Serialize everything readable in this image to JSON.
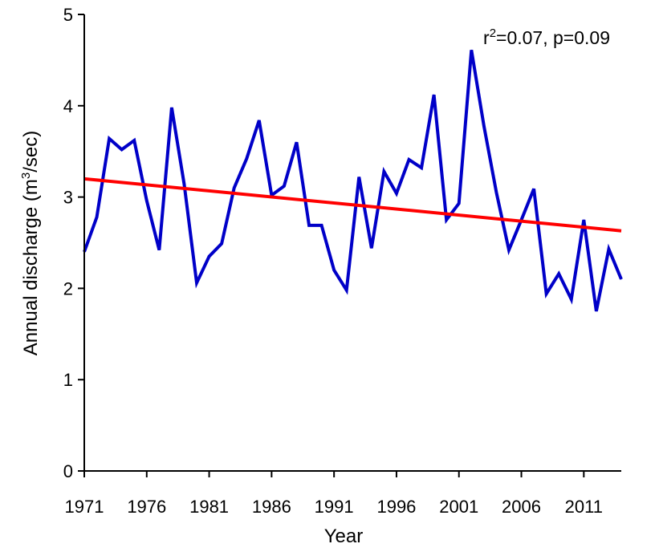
{
  "chart_data": {
    "type": "line",
    "xlabel": "Year",
    "ylabel_main": "Annual discharge (m",
    "ylabel_sup": "3",
    "ylabel_tail": "/sec)",
    "xlim": [
      1971,
      2014
    ],
    "ylim": [
      0,
      5
    ],
    "x_ticks": [
      "1971",
      "1976",
      "1981",
      "1986",
      "1991",
      "1996",
      "2001",
      "2006",
      "2011"
    ],
    "y_ticks": [
      "0",
      "1",
      "2",
      "3",
      "4",
      "5"
    ],
    "annotation": {
      "pre": "r",
      "sup": "2",
      "post": "=0.07, p=0.09"
    },
    "series": [
      {
        "color": "#0000c8",
        "x": [
          1971,
          1972,
          1973,
          1974,
          1975,
          1976,
          1977,
          1978,
          1979,
          1980,
          1981,
          1982,
          1983,
          1984,
          1985,
          1986,
          1987,
          1988,
          1989,
          1990,
          1991,
          1992,
          1993,
          1994,
          1995,
          1996,
          1997,
          1998,
          1999,
          2000,
          2001,
          2002,
          2003,
          2004,
          2005,
          2006,
          2007,
          2008,
          2009,
          2010,
          2011,
          2012,
          2013,
          2014
        ],
        "y": [
          2.4,
          2.78,
          3.64,
          3.52,
          3.62,
          2.96,
          2.42,
          3.98,
          3.14,
          2.06,
          2.35,
          2.49,
          3.1,
          3.42,
          3.84,
          3.02,
          3.12,
          3.6,
          2.69,
          2.69,
          2.2,
          1.98,
          3.22,
          2.44,
          3.28,
          3.04,
          3.41,
          3.32,
          4.12,
          2.75,
          2.93,
          4.61,
          3.78,
          3.05,
          2.42,
          2.75,
          3.09,
          1.94,
          2.16,
          1.88,
          2.75,
          1.75,
          2.43,
          2.1
        ]
      }
    ],
    "trend": {
      "color": "#ff0000",
      "x": [
        1971,
        2014
      ],
      "y": [
        3.2,
        2.63
      ]
    }
  }
}
